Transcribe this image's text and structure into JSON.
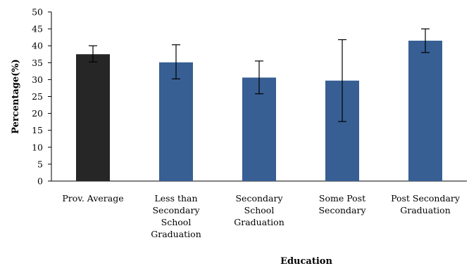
{
  "chart_data": {
    "type": "bar",
    "categories": [
      [
        "Prov. Average"
      ],
      [
        "Less than",
        "Secondary",
        "School",
        "Graduation"
      ],
      [
        "Secondary",
        "School",
        "Graduation"
      ],
      [
        "Some Post",
        "Secondary"
      ],
      [
        "Post Secondary",
        "Graduation"
      ]
    ],
    "values": [
      37.5,
      35.1,
      30.6,
      29.7,
      41.5
    ],
    "error_low": [
      35.2,
      30.2,
      25.8,
      17.6,
      38.0
    ],
    "error_high": [
      40.0,
      40.3,
      35.5,
      41.8,
      45.0
    ],
    "bar_colors": [
      "#262626",
      "#375f94",
      "#375f94",
      "#375f94",
      "#375f94"
    ],
    "title": "",
    "xlabel": "Education",
    "ylabel": "Percentage(%)",
    "ylim": [
      0,
      50
    ],
    "yticks": [
      0,
      5,
      10,
      15,
      20,
      25,
      30,
      35,
      40,
      45,
      50
    ],
    "grid": false,
    "legend": false
  }
}
